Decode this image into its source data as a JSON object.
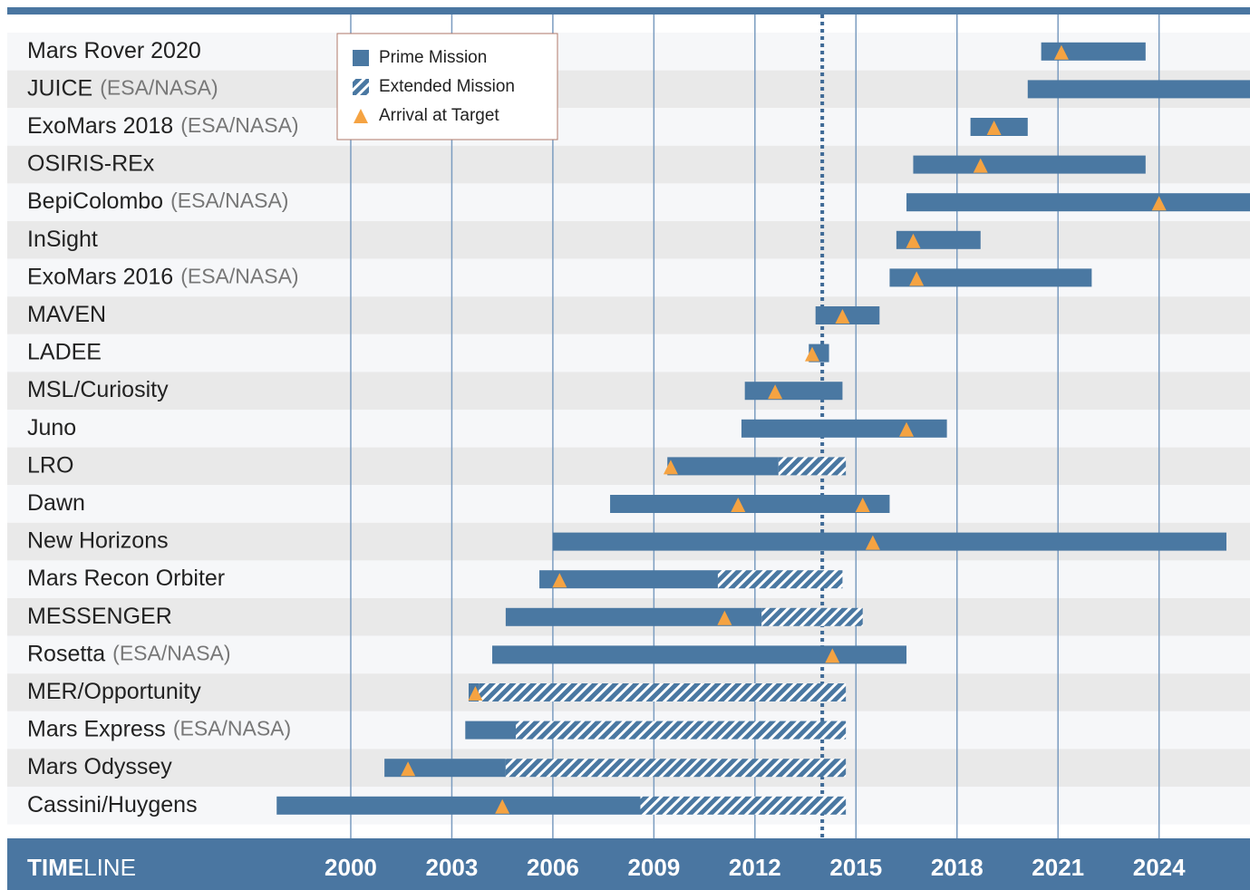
{
  "chart_data": {
    "type": "timeline",
    "title_bold": "TIME",
    "title_rest": "LINE",
    "categories": [
      "Mars Rover 2020",
      "JUICE",
      "ExoMars 2018",
      "OSIRIS-REx",
      "BepiColombo",
      "InSight",
      "ExoMars 2016",
      "MAVEN",
      "LADEE",
      "MSL/Curiosity",
      "Juno",
      "LRO",
      "Dawn",
      "New Horizons",
      "Mars Recon Orbiter",
      "MESSENGER",
      "Rosetta",
      "MER/Opportunity",
      "Mars Express",
      "Mars Odyssey",
      "Cassini/Huygens"
    ],
    "agency": [
      null,
      "(ESA/NASA)",
      "(ESA/NASA)",
      null,
      "(ESA/NASA)",
      null,
      "(ESA/NASA)",
      null,
      null,
      null,
      null,
      null,
      null,
      null,
      null,
      null,
      "(ESA/NASA)",
      null,
      "(ESA/NASA)",
      null,
      null
    ],
    "start": [
      2020.5,
      2020.1,
      2018.4,
      2016.7,
      2016.5,
      2016.2,
      2016.0,
      2013.8,
      2013.6,
      2011.7,
      2011.6,
      2009.4,
      2007.7,
      2006.0,
      2005.6,
      2004.6,
      2004.2,
      2003.5,
      2003.4,
      2001.0,
      1997.8
    ],
    "prime_end": [
      2023.6,
      2026.7,
      2020.1,
      2023.6,
      2026.7,
      2018.7,
      2022.0,
      2015.7,
      2014.2,
      2014.6,
      2017.7,
      2012.7,
      2016.0,
      2026.0,
      2010.9,
      2012.2,
      2016.5,
      2003.8,
      2004.9,
      2004.6,
      2008.6
    ],
    "extended_end": [
      null,
      null,
      null,
      null,
      null,
      null,
      null,
      null,
      null,
      null,
      null,
      2014.7,
      null,
      null,
      2014.6,
      2015.2,
      null,
      2014.7,
      2014.7,
      2014.7,
      2014.7
    ],
    "arrivals": [
      [
        2021.1
      ],
      [],
      [
        2019.1
      ],
      [
        2018.7
      ],
      [
        2024.0
      ],
      [
        2016.7
      ],
      [
        2016.8
      ],
      [
        2014.6
      ],
      [
        2013.7
      ],
      [
        2012.6
      ],
      [
        2016.5
      ],
      [
        2009.5
      ],
      [
        2011.5,
        2015.2
      ],
      [
        2015.5
      ],
      [
        2006.2
      ],
      [
        2011.1
      ],
      [
        2014.3
      ],
      [
        2003.7
      ],
      [],
      [
        2001.7
      ],
      [
        2004.5
      ]
    ],
    "reference_line": 2014.0,
    "xlim": [
      1989.8,
      2026.7
    ],
    "xticks": [
      2000,
      2003,
      2006,
      2009,
      2012,
      2015,
      2018,
      2021,
      2024
    ],
    "legend": [
      "Prime Mission",
      "Extended Mission",
      "Arrival at Target"
    ],
    "colors": {
      "prime": "#4a78a2",
      "arrival": "#f5a342",
      "grid": "#7b9cc0",
      "footer": "#4a76a1"
    }
  }
}
